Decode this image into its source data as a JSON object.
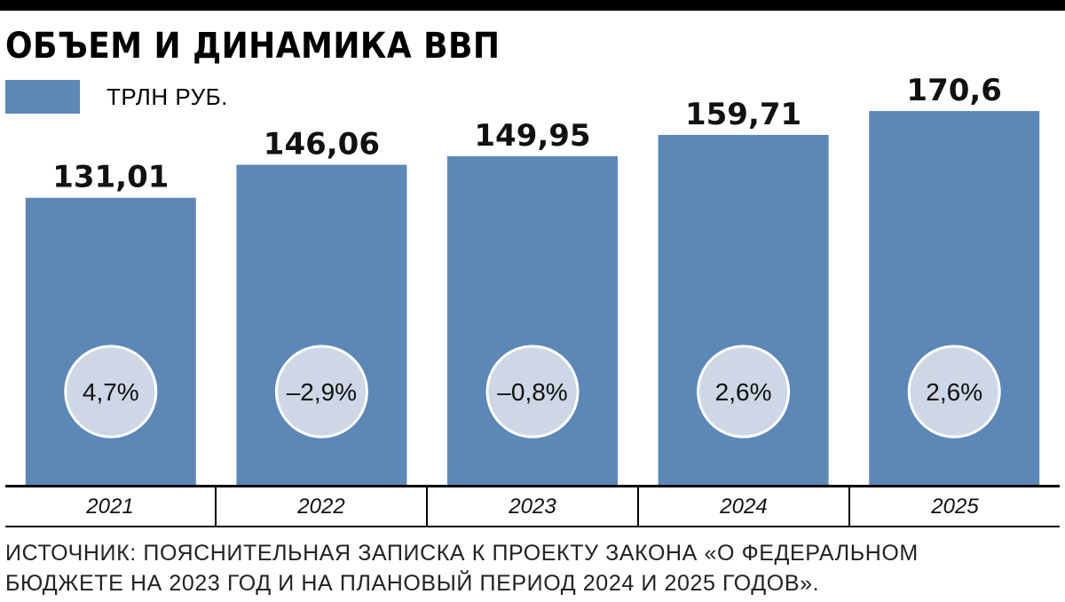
{
  "title": "ОБЪЕМ И ДИНАМИКА ВВП",
  "legend": {
    "label": "ТРЛН РУБ.",
    "color": "#5c88b8"
  },
  "chart_data": {
    "type": "bar",
    "title": "ОБЪЕМ И ДИНАМИКА ВВП",
    "unit": "ТРЛН РУБ.",
    "categories": [
      "2021",
      "2022",
      "2023",
      "2024",
      "2025"
    ],
    "values": [
      131.01,
      146.06,
      149.95,
      159.71,
      170.6
    ],
    "value_labels": [
      "131,01",
      "146,06",
      "149,95",
      "159,71",
      "170,6"
    ],
    "growth_labels": [
      "4,7%",
      "–2,9%",
      "–0,8%",
      "2,6%",
      "2,6%"
    ],
    "grid": false,
    "legend_position": "top-left",
    "colors": {
      "bar": "#5c88b8",
      "circle": "#cdd7e6",
      "circle_border": "#ffffff"
    }
  },
  "source": "ИСТОЧНИК: ПОЯСНИТЕЛЬНАЯ ЗАПИСКА К ПРОЕКТУ ЗАКОНА «О ФЕДЕРАЛЬНОМ БЮДЖЕТЕ НА 2023 ГОД И НА ПЛАНОВЫЙ ПЕРИОД 2024 И 2025 ГОДОВ»."
}
